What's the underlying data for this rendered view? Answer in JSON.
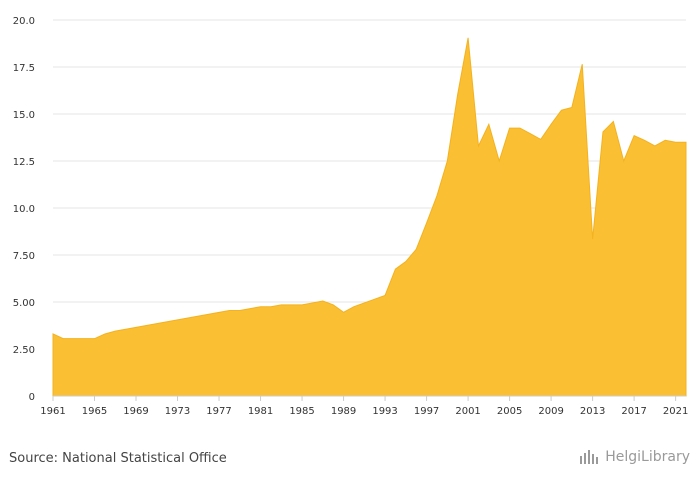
{
  "chart_data": {
    "type": "area",
    "title": "",
    "xlabel": "",
    "ylabel": "",
    "xlim": [
      1961,
      2022
    ],
    "ylim": [
      0,
      20
    ],
    "x_ticks": [
      "1961",
      "1965",
      "1969",
      "1973",
      "1977",
      "1981",
      "1985",
      "1989",
      "1993",
      "1997",
      "2001",
      "2005",
      "2009",
      "2013",
      "2017",
      "2021"
    ],
    "y_ticks": [
      "0",
      "2.50",
      "5.00",
      "7.50",
      "10.0",
      "12.5",
      "15.0",
      "17.5",
      "20.0"
    ],
    "grid": true,
    "color": "#fbbf33",
    "x": [
      1961,
      1962,
      1963,
      1964,
      1965,
      1966,
      1967,
      1968,
      1969,
      1970,
      1971,
      1972,
      1973,
      1974,
      1975,
      1976,
      1977,
      1978,
      1979,
      1980,
      1981,
      1982,
      1983,
      1984,
      1985,
      1986,
      1987,
      1988,
      1989,
      1990,
      1991,
      1992,
      1993,
      1994,
      1995,
      1996,
      1997,
      1998,
      1999,
      2000,
      2001,
      2002,
      2003,
      2004,
      2005,
      2006,
      2007,
      2008,
      2009,
      2010,
      2011,
      2012,
      2013,
      2014,
      2015,
      2016,
      2017,
      2018,
      2019,
      2020,
      2021,
      2022
    ],
    "values": [
      3.3,
      3.05,
      3.05,
      3.05,
      3.05,
      3.3,
      3.45,
      3.55,
      3.65,
      3.75,
      3.85,
      3.95,
      4.05,
      4.15,
      4.25,
      4.35,
      4.45,
      4.55,
      4.55,
      4.65,
      4.75,
      4.75,
      4.85,
      4.85,
      4.85,
      4.95,
      5.05,
      4.85,
      4.45,
      4.75,
      4.95,
      5.15,
      5.35,
      6.75,
      7.15,
      7.8,
      9.2,
      10.65,
      12.5,
      16.05,
      19.05,
      13.3,
      14.45,
      12.5,
      14.25,
      14.25,
      13.95,
      13.65,
      14.45,
      15.2,
      15.35,
      17.65,
      8.35,
      14.05,
      14.6,
      12.5,
      13.85,
      13.6,
      13.3,
      13.6,
      13.5,
      13.5
    ]
  },
  "footer": {
    "source": "Source: National Statistical Office",
    "brand": "HelgiLibrary"
  }
}
